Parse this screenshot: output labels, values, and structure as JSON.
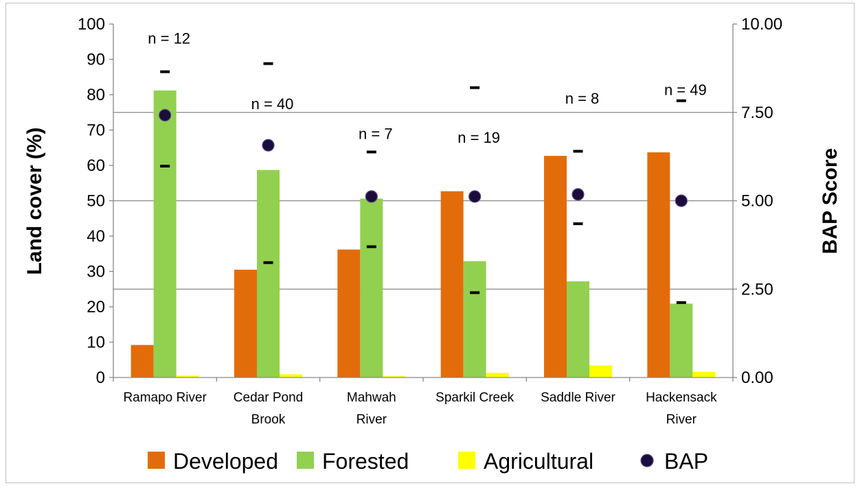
{
  "chart_data": {
    "type": "bar",
    "categories": [
      "Ramapo River",
      "Cedar Pond Brook",
      "Mahwah River",
      "Sparkil Creek",
      "Saddle River",
      "Hackensack River"
    ],
    "category_lines": [
      [
        "Ramapo River"
      ],
      [
        "Cedar Pond",
        "Brook"
      ],
      [
        "Mahwah",
        "River"
      ],
      [
        "Sparkil Creek"
      ],
      [
        "Saddle River"
      ],
      [
        "Hackensack",
        "River"
      ]
    ],
    "series": [
      {
        "name": "Developed",
        "color": "#e36c0a",
        "values": [
          9.2,
          30.5,
          36.2,
          52.7,
          62.7,
          63.7
        ]
      },
      {
        "name": "Forested",
        "color": "#92d050",
        "values": [
          81.2,
          58.7,
          50.6,
          32.9,
          27.2,
          20.9
        ]
      },
      {
        "name": "Agricultural",
        "color": "#ffff00",
        "values": [
          0.5,
          0.9,
          0.4,
          1.3,
          3.4,
          1.6
        ]
      }
    ],
    "bap": {
      "name": "BAP",
      "color": "#1a0d3a",
      "mean": [
        7.42,
        6.57,
        5.12,
        5.12,
        5.18,
        5.0
      ],
      "upper": [
        8.65,
        8.88,
        6.38,
        8.2,
        6.4,
        7.83
      ],
      "lower": [
        5.98,
        3.25,
        3.7,
        2.4,
        4.35,
        2.12
      ],
      "n_labels": [
        "n = 12",
        "n = 40",
        "n = 7",
        "n = 19",
        "n = 8",
        "n = 49"
      ],
      "n_label_values": [
        9.6,
        7.75,
        6.9,
        6.8,
        7.9,
        8.15
      ]
    },
    "ylabel": "Land cover (%)",
    "y2label": "BAP Score",
    "ylim": [
      0,
      100
    ],
    "y2lim": [
      0,
      10
    ],
    "yticks": [
      "0",
      "10",
      "20",
      "30",
      "40",
      "50",
      "60",
      "70",
      "80",
      "90",
      "100"
    ],
    "y2ticks": [
      "0.00",
      "2.50",
      "5.00",
      "7.50",
      "10.00"
    ],
    "gridlines_y2": [
      2.5,
      5.0,
      7.5
    ],
    "legend_position": "bottom"
  }
}
